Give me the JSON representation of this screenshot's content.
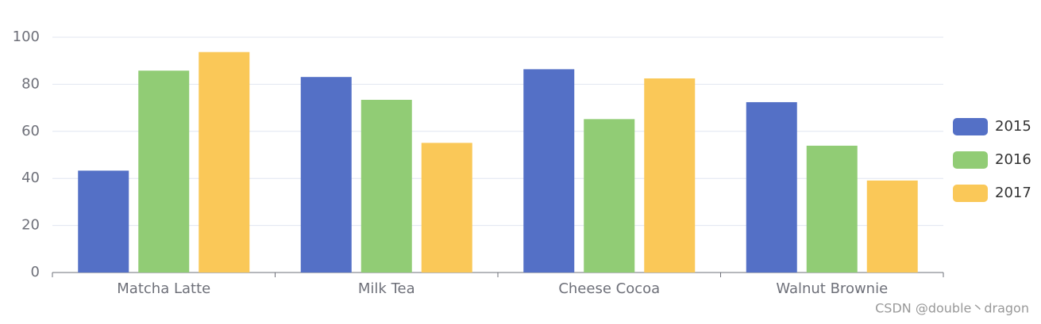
{
  "chart_data": {
    "type": "bar",
    "categories": [
      "Matcha Latte",
      "Milk Tea",
      "Cheese Cocoa",
      "Walnut Brownie"
    ],
    "series": [
      {
        "name": "2015",
        "color": "#5470c6",
        "values": [
          43.3,
          83.1,
          86.4,
          72.4
        ]
      },
      {
        "name": "2016",
        "color": "#91cc75",
        "values": [
          85.8,
          73.4,
          65.2,
          53.9
        ]
      },
      {
        "name": "2017",
        "color": "#fac858",
        "values": [
          93.7,
          55.1,
          82.5,
          39.1
        ]
      }
    ],
    "ylim": [
      0,
      100
    ],
    "yticks": [
      0,
      20,
      40,
      60,
      80,
      100
    ],
    "grid": true,
    "legend": "right",
    "watermark": "CSDN @double丶dragon"
  }
}
